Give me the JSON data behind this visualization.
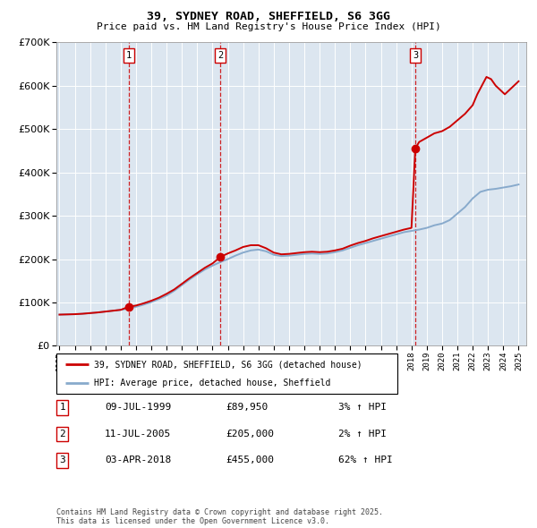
{
  "title": "39, SYDNEY ROAD, SHEFFIELD, S6 3GG",
  "subtitle": "Price paid vs. HM Land Registry's House Price Index (HPI)",
  "bg_color": "#dce6f0",
  "legend1_label": "39, SYDNEY ROAD, SHEFFIELD, S6 3GG (detached house)",
  "legend2_label": "HPI: Average price, detached house, Sheffield",
  "sale_date1": "09-JUL-1999",
  "sale_date2": "11-JUL-2005",
  "sale_date3": "03-APR-2018",
  "sale_price1": "£89,950",
  "sale_price2": "£205,000",
  "sale_price3": "£455,000",
  "sale_pct1": "3% ↑ HPI",
  "sale_pct2": "2% ↑ HPI",
  "sale_pct3": "62% ↑ HPI",
  "copyright": "Contains HM Land Registry data © Crown copyright and database right 2025.\nThis data is licensed under the Open Government Licence v3.0.",
  "red_color": "#cc0000",
  "blue_color": "#88aacc",
  "vline_color": "#cc0000",
  "ylim": [
    0,
    700000
  ],
  "yticks": [
    0,
    100000,
    200000,
    300000,
    400000,
    500000,
    600000,
    700000
  ],
  "sale_years": [
    1999.52,
    2005.52,
    2018.25
  ],
  "sale_prices": [
    89950,
    205000,
    455000
  ],
  "hpi_years": [
    1995.0,
    1995.5,
    1996.0,
    1996.5,
    1997.0,
    1997.5,
    1998.0,
    1998.5,
    1999.0,
    1999.5,
    2000.0,
    2000.5,
    2001.0,
    2001.5,
    2002.0,
    2002.5,
    2003.0,
    2003.5,
    2004.0,
    2004.5,
    2005.0,
    2005.5,
    2006.0,
    2006.5,
    2007.0,
    2007.5,
    2008.0,
    2008.5,
    2009.0,
    2009.5,
    2010.0,
    2010.5,
    2011.0,
    2011.5,
    2012.0,
    2012.5,
    2013.0,
    2013.5,
    2014.0,
    2014.5,
    2015.0,
    2015.5,
    2016.0,
    2016.5,
    2017.0,
    2017.5,
    2018.0,
    2018.5,
    2019.0,
    2019.5,
    2020.0,
    2020.5,
    2021.0,
    2021.5,
    2022.0,
    2022.5,
    2023.0,
    2023.5,
    2024.0,
    2024.5,
    2025.0
  ],
  "hpi_values": [
    72000,
    72500,
    73000,
    74000,
    75500,
    77000,
    79000,
    81000,
    83000,
    86000,
    90000,
    95000,
    101000,
    108000,
    116000,
    127000,
    140000,
    153000,
    165000,
    176000,
    185000,
    193000,
    200000,
    208000,
    215000,
    220000,
    222000,
    218000,
    210000,
    207000,
    208000,
    210000,
    212000,
    213000,
    212000,
    213000,
    216000,
    220000,
    226000,
    232000,
    237000,
    242000,
    247000,
    252000,
    257000,
    262000,
    265000,
    268000,
    272000,
    278000,
    282000,
    290000,
    305000,
    320000,
    340000,
    355000,
    360000,
    362000,
    365000,
    368000,
    372000
  ],
  "property_years": [
    1995.0,
    1995.5,
    1996.0,
    1996.5,
    1997.0,
    1997.5,
    1998.0,
    1998.5,
    1999.0,
    1999.52,
    2000.0,
    2000.5,
    2001.0,
    2001.5,
    2002.0,
    2002.5,
    2003.0,
    2003.5,
    2004.0,
    2004.5,
    2005.0,
    2005.52,
    2006.0,
    2006.5,
    2007.0,
    2007.5,
    2008.0,
    2008.5,
    2009.0,
    2009.5,
    2010.0,
    2010.5,
    2011.0,
    2011.5,
    2012.0,
    2012.5,
    2013.0,
    2013.5,
    2014.0,
    2014.5,
    2015.0,
    2015.5,
    2016.0,
    2016.5,
    2017.0,
    2017.5,
    2018.0,
    2018.25,
    2018.5,
    2019.0,
    2019.5,
    2020.0,
    2020.5,
    2021.0,
    2021.5,
    2022.0,
    2022.3,
    2022.6,
    2022.9,
    2023.2,
    2023.5,
    2023.8,
    2024.1,
    2024.4,
    2024.7,
    2025.0
  ],
  "property_values": [
    72000,
    72500,
    73000,
    74000,
    75500,
    77000,
    79000,
    81000,
    83000,
    89950,
    93000,
    98000,
    104000,
    111000,
    120000,
    130000,
    143000,
    156000,
    168000,
    180000,
    190000,
    205000,
    213000,
    220000,
    228000,
    232000,
    232000,
    225000,
    215000,
    211000,
    212000,
    214000,
    216000,
    217000,
    216000,
    217000,
    220000,
    224000,
    231000,
    237000,
    242000,
    248000,
    253000,
    258000,
    263000,
    268000,
    272000,
    455000,
    470000,
    480000,
    490000,
    495000,
    505000,
    520000,
    535000,
    555000,
    580000,
    600000,
    620000,
    615000,
    600000,
    590000,
    580000,
    590000,
    600000,
    610000
  ]
}
